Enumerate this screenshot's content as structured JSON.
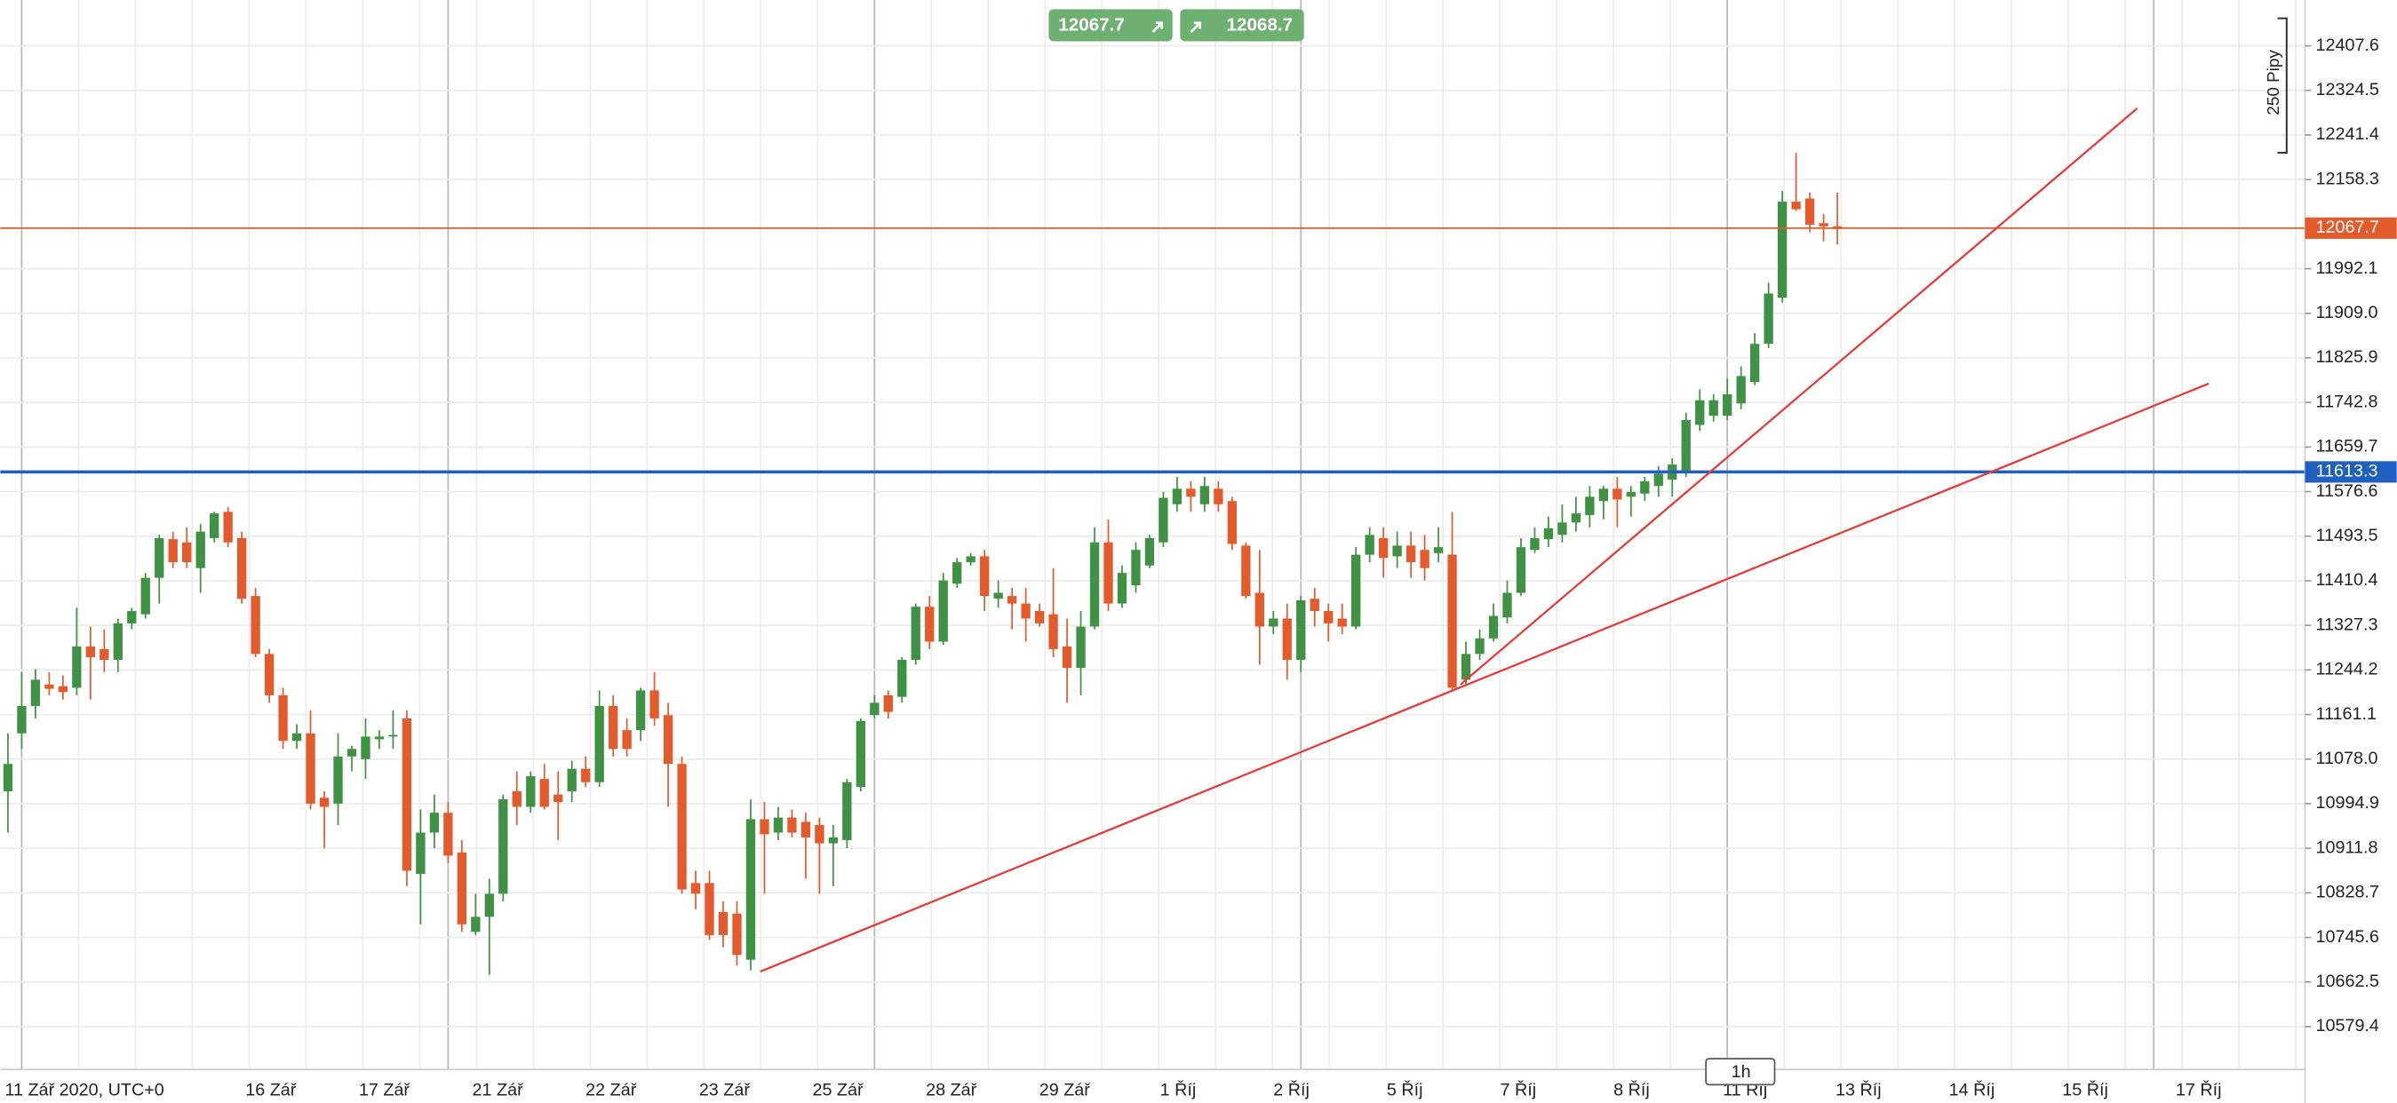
{
  "chart_data": {
    "type": "candlestick",
    "ohlc": [
      [
        11018,
        11126,
        10941,
        11069
      ],
      [
        11126,
        11240,
        11097,
        11177
      ],
      [
        11177,
        11246,
        11154,
        11226
      ],
      [
        11217,
        11240,
        11197,
        11209
      ],
      [
        11214,
        11234,
        11189,
        11203
      ],
      [
        11211,
        11360,
        11197,
        11288
      ],
      [
        11288,
        11325,
        11189,
        11268
      ],
      [
        11283,
        11320,
        11240,
        11263
      ],
      [
        11263,
        11340,
        11240,
        11331
      ],
      [
        11331,
        11360,
        11320,
        11354
      ],
      [
        11348,
        11425,
        11340,
        11416
      ],
      [
        11416,
        11496,
        11368,
        11490
      ],
      [
        11488,
        11502,
        11434,
        11445
      ],
      [
        11482,
        11510,
        11434,
        11445
      ],
      [
        11434,
        11516,
        11388,
        11502
      ],
      [
        11490,
        11539,
        11482,
        11536
      ],
      [
        11539,
        11548,
        11473,
        11482
      ],
      [
        11490,
        11502,
        11368,
        11377
      ],
      [
        11382,
        11397,
        11268,
        11274
      ],
      [
        11274,
        11283,
        11183,
        11197
      ],
      [
        11197,
        11211,
        11097,
        11112
      ],
      [
        11112,
        11143,
        11097,
        11126
      ],
      [
        11126,
        11169,
        10984,
        10995
      ],
      [
        11006,
        11018,
        10912,
        10989
      ],
      [
        10995,
        11126,
        10955,
        11083
      ],
      [
        11083,
        11103,
        11055,
        11097
      ],
      [
        11078,
        11154,
        11041,
        11120
      ],
      [
        11115,
        11132,
        11097,
        11120
      ],
      [
        11120,
        11169,
        11097,
        11123
      ],
      [
        11154,
        11169,
        10841,
        10870
      ],
      [
        10864,
        10984,
        10770,
        10941
      ],
      [
        10941,
        11012,
        10912,
        10978
      ],
      [
        10978,
        10998,
        10884,
        10898
      ],
      [
        10904,
        10927,
        10756,
        10770
      ],
      [
        10756,
        10827,
        10750,
        10784
      ],
      [
        10784,
        10855,
        10676,
        10827
      ],
      [
        10827,
        11012,
        10813,
        11003
      ],
      [
        11018,
        11055,
        10955,
        10989
      ],
      [
        10989,
        11055,
        10978,
        11046
      ],
      [
        11041,
        11069,
        10984,
        10989
      ],
      [
        11012,
        11055,
        10927,
        10998
      ],
      [
        11018,
        11075,
        10998,
        11060
      ],
      [
        11060,
        11083,
        11026,
        11035
      ],
      [
        11035,
        11206,
        11026,
        11177
      ],
      [
        11177,
        11197,
        11083,
        11097
      ],
      [
        11132,
        11154,
        11083,
        11097
      ],
      [
        11132,
        11211,
        11112,
        11206
      ],
      [
        11206,
        11240,
        11140,
        11154
      ],
      [
        11160,
        11183,
        10989,
        11069
      ],
      [
        11069,
        11083,
        10827,
        10835
      ],
      [
        10847,
        10870,
        10798,
        10827
      ],
      [
        10847,
        10870,
        10741,
        10750
      ],
      [
        10793,
        10813,
        10727,
        10750
      ],
      [
        10790,
        10813,
        10693,
        10713
      ],
      [
        10704,
        11003,
        10684,
        10966
      ],
      [
        10966,
        10998,
        10827,
        10938
      ],
      [
        10941,
        10989,
        10927,
        10969
      ],
      [
        10969,
        10984,
        10932,
        10941
      ],
      [
        10961,
        10978,
        10855,
        10932
      ],
      [
        10955,
        10969,
        10827,
        10921
      ],
      [
        10921,
        10955,
        10841,
        10932
      ],
      [
        10927,
        11041,
        10912,
        11035
      ],
      [
        11026,
        11154,
        11018,
        11149
      ],
      [
        11160,
        11197,
        11154,
        11183
      ],
      [
        11197,
        11206,
        11154,
        11166
      ],
      [
        11194,
        11268,
        11183,
        11263
      ],
      [
        11263,
        11368,
        11254,
        11362
      ],
      [
        11362,
        11382,
        11283,
        11297
      ],
      [
        11297,
        11425,
        11291,
        11411
      ],
      [
        11405,
        11453,
        11397,
        11445
      ],
      [
        11445,
        11462,
        11439,
        11456
      ],
      [
        11456,
        11468,
        11354,
        11382
      ],
      [
        11377,
        11411,
        11360,
        11388
      ],
      [
        11382,
        11397,
        11320,
        11368
      ],
      [
        11368,
        11397,
        11297,
        11340
      ],
      [
        11354,
        11368,
        11325,
        11331
      ],
      [
        11348,
        11434,
        11268,
        11283
      ],
      [
        11288,
        11340,
        11183,
        11248
      ],
      [
        11248,
        11354,
        11197,
        11325
      ],
      [
        11325,
        11510,
        11320,
        11482
      ],
      [
        11482,
        11525,
        11354,
        11368
      ],
      [
        11368,
        11439,
        11360,
        11425
      ],
      [
        11402,
        11482,
        11388,
        11468
      ],
      [
        11439,
        11496,
        11434,
        11490
      ],
      [
        11482,
        11576,
        11473,
        11565
      ],
      [
        11553,
        11604,
        11539,
        11582
      ],
      [
        11582,
        11596,
        11539,
        11567
      ],
      [
        11553,
        11604,
        11539,
        11587
      ],
      [
        11582,
        11596,
        11539,
        11553
      ],
      [
        11559,
        11567,
        11468,
        11479
      ],
      [
        11476,
        11482,
        11377,
        11382
      ],
      [
        11388,
        11468,
        11254,
        11325
      ],
      [
        11325,
        11354,
        11311,
        11340
      ],
      [
        11340,
        11368,
        11226,
        11263
      ],
      [
        11263,
        11382,
        11240,
        11374
      ],
      [
        11377,
        11397,
        11325,
        11354
      ],
      [
        11354,
        11368,
        11297,
        11331
      ],
      [
        11340,
        11368,
        11311,
        11325
      ],
      [
        11325,
        11473,
        11320,
        11459
      ],
      [
        11459,
        11510,
        11445,
        11496
      ],
      [
        11490,
        11510,
        11416,
        11453
      ],
      [
        11456,
        11502,
        11434,
        11476
      ],
      [
        11476,
        11502,
        11416,
        11445
      ],
      [
        11468,
        11496,
        11411,
        11434
      ],
      [
        11462,
        11510,
        11445,
        11473
      ],
      [
        11459,
        11539,
        11206,
        11211
      ],
      [
        11226,
        11297,
        11217,
        11274
      ],
      [
        11274,
        11320,
        11263,
        11303
      ],
      [
        11303,
        11368,
        11297,
        11345
      ],
      [
        11342,
        11411,
        11331,
        11388
      ],
      [
        11388,
        11490,
        11382,
        11473
      ],
      [
        11468,
        11510,
        11462,
        11490
      ],
      [
        11488,
        11530,
        11473,
        11508
      ],
      [
        11496,
        11553,
        11482,
        11519
      ],
      [
        11519,
        11567,
        11502,
        11536
      ],
      [
        11533,
        11587,
        11510,
        11567
      ],
      [
        11559,
        11587,
        11525,
        11582
      ],
      [
        11582,
        11604,
        11510,
        11562
      ],
      [
        11567,
        11587,
        11530,
        11576
      ],
      [
        11573,
        11604,
        11559,
        11596
      ],
      [
        11587,
        11624,
        11567,
        11610
      ],
      [
        11599,
        11639,
        11567,
        11627
      ],
      [
        11616,
        11724,
        11604,
        11710
      ],
      [
        11701,
        11767,
        11690,
        11747
      ],
      [
        11718,
        11758,
        11707,
        11747
      ],
      [
        11718,
        11787,
        11710,
        11758
      ],
      [
        11741,
        11810,
        11730,
        11792
      ],
      [
        11781,
        11872,
        11775,
        11852
      ],
      [
        11852,
        11966,
        11844,
        11946
      ],
      [
        11938,
        12137,
        11929,
        12117
      ],
      [
        12117,
        12208,
        12100,
        12103
      ],
      [
        12123,
        12134,
        12060,
        12074
      ],
      [
        12077,
        12094,
        12043,
        12071
      ],
      [
        12071,
        12134,
        12037,
        12066
      ]
    ],
    "up_color": "#3f9143",
    "down_color": "#e35b2d",
    "ylim": [
      10499.6,
      12493
    ],
    "yticks": [
      12407.6,
      12324.5,
      12241.4,
      12158.3,
      11992.1,
      {
        "value": 11909,
        "label": "11909.0"
      },
      11825.9,
      11742.8,
      11659.7,
      11576.6,
      11493.5,
      11410.4,
      11327.3,
      11244.2,
      11161.1,
      {
        "value": 11078,
        "label": "11078.0"
      },
      10994.9,
      10911.8,
      10828.7,
      10745.6,
      10662.5,
      10579.4
    ],
    "grid": true,
    "xlabels": [
      "11 Zář 2020, UTC+0",
      "16 Zář",
      "17 Zář",
      "21 Zář",
      "22 Zář",
      "23 Zář",
      "25 Zář",
      "28 Zář",
      "29 Zář",
      "1 Říj",
      "2 Říj",
      "5 Říj",
      "7 Říj",
      "8 Říj",
      "11 Říj",
      "13 Říj",
      "14 Říj",
      "15 Říj",
      "17 Říj"
    ],
    "price_lines": [
      {
        "value": 12067.7,
        "color": "#e35b2d"
      },
      {
        "value": 11613.3,
        "color": "#1f5fbf"
      }
    ],
    "trendlines": [
      {
        "color": "#e53935",
        "points": [
          [
            54.7,
            10682
          ],
          [
            160,
            11778
          ]
        ]
      },
      {
        "color": "#e53935",
        "points": [
          [
            105.6,
            11217
          ],
          [
            154.8,
            12291
          ]
        ]
      }
    ]
  },
  "trade_panel": {
    "sell": 12067.7,
    "buy": 12068.7
  },
  "ruler_label": "250 Pipy",
  "timeframe": "1h"
}
